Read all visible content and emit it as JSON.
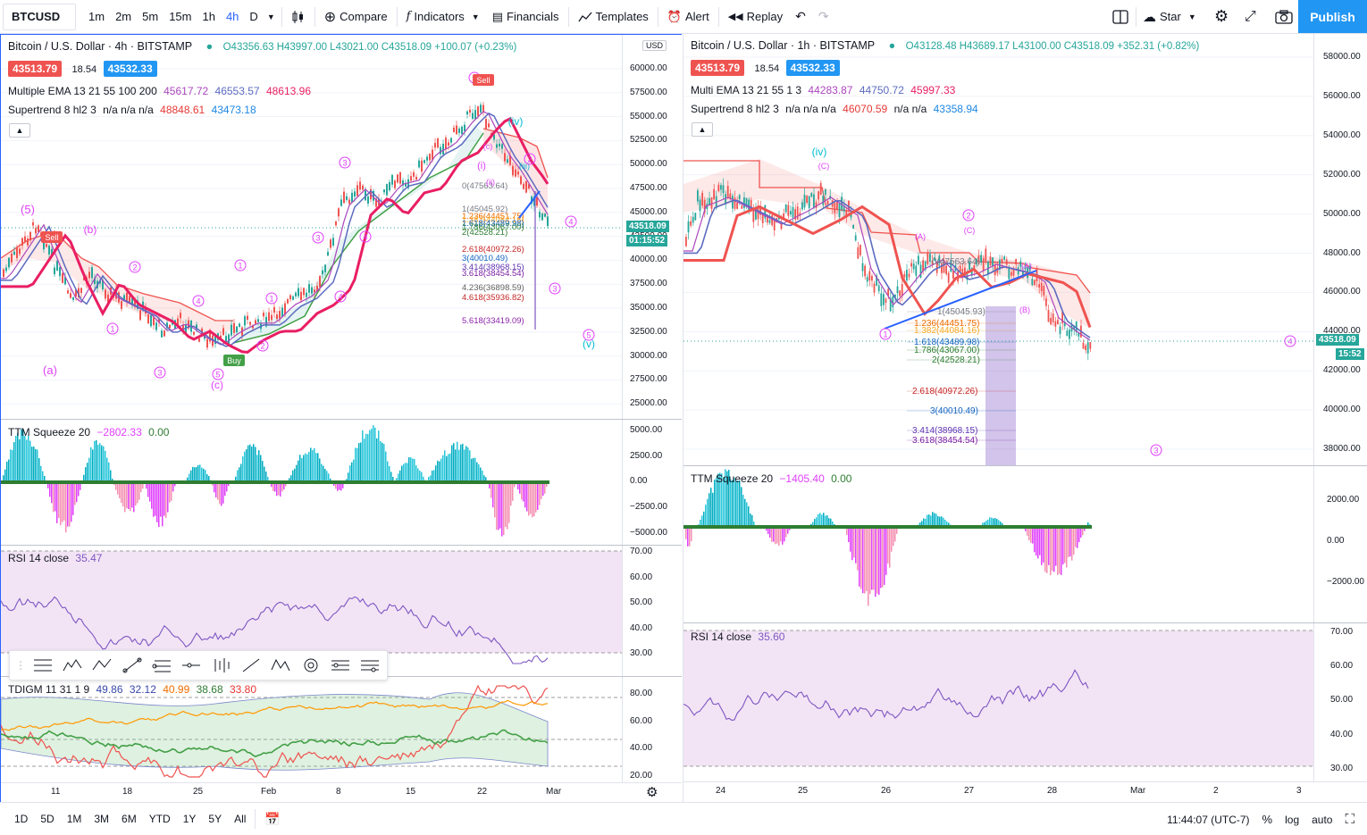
{
  "toolbar": {
    "symbol": "BTCUSD",
    "timeframes": [
      "1m",
      "2m",
      "5m",
      "15m",
      "1h",
      "4h",
      "D"
    ],
    "active_timeframe": "4h",
    "compare": "Compare",
    "indicators": "Indicators",
    "financials": "Financials",
    "templates": "Templates",
    "alert": "Alert",
    "replay": "Replay",
    "star": "Star",
    "publish": "Publish"
  },
  "left_chart": {
    "title": "Bitcoin / U.S. Dollar · 4h · BITSTAMP",
    "ohlc": "O43356.63 H43997.00 L43021.00 C43518.09 +100.07 (+0.23%)",
    "bid": "43513.79",
    "spread": "18.54",
    "ask": "43532.33",
    "currency": "USD",
    "ema_name": "Multiple EMA 13 21 55 100 200",
    "ema_vals": [
      "45617.72",
      "46553.57",
      "48613.96"
    ],
    "st_name": "Supertrend 8 hl2 3",
    "st_na": "n/a n/a n/a",
    "st_vals": [
      "48848.61",
      "43473.18"
    ],
    "last_price": "43518.09",
    "countdown": "01:15:52",
    "price_ticks": [
      "60000.00",
      "57500.00",
      "55000.00",
      "52500.00",
      "50000.00",
      "47500.00",
      "45000.00",
      "42500.00",
      "40000.00",
      "37500.00",
      "35000.00",
      "32500.00",
      "30000.00",
      "27500.00",
      "25000.00"
    ],
    "fib_labels": [
      "0(47563.64)",
      "1(45045.92)",
      "1.236(44451.75)",
      "1.382(44084.16)",
      "1.618(43489.98)",
      "1.786(43067.00)",
      "2(42528.21)",
      "2.618(40972.26)",
      "3(40010.49)",
      "3.414(38968.15)",
      "3.618(38454.54)",
      "4.236(36898.59)",
      "4.618(35936.82)",
      "5.618(33419.09)"
    ],
    "wave_labels": [
      "(5)",
      "(a)",
      "(b)",
      "(c)",
      "Sell",
      "Buy",
      "(iv)",
      "(v)",
      "(c)",
      "(i)",
      "(ii)",
      "(iii)"
    ],
    "ttm_name": "TTM Squeeze 20",
    "ttm_val1": "−2802.33",
    "ttm_val2": "0.00",
    "ttm_ticks": [
      "5000.00",
      "2500.00",
      "0.00",
      "−2500.00",
      "−5000.00"
    ],
    "rsi_name": "RSI 14 close",
    "rsi_val": "35.47",
    "rsi_ticks": [
      "70.00",
      "60.00",
      "50.00",
      "40.00",
      "30.00"
    ],
    "tdigm_name": "TDIGM 11 31 1 9",
    "tdigm_vals": [
      "49.86",
      "32.12",
      "40.99",
      "38.68",
      "33.80"
    ],
    "tdigm_ticks": [
      "80.00",
      "60.00",
      "40.00",
      "20.00"
    ],
    "time_labels": [
      "11",
      "18",
      "25",
      "Feb",
      "8",
      "15",
      "22",
      "Mar"
    ]
  },
  "right_chart": {
    "title": "Bitcoin / U.S. Dollar · 1h · BITSTAMP",
    "ohlc": "O43128.48 H43689.17 L43100.00 C43518.09 +352.31 (+0.82%)",
    "bid": "43513.79",
    "spread": "18.54",
    "ask": "43532.33",
    "ema_name": "Multi EMA 13 21 55 1 3",
    "ema_vals": [
      "44283.87",
      "44750.72",
      "45997.33"
    ],
    "st_name": "Supertrend 8 hl2 3",
    "st_na1": "n/a n/a n/a",
    "st_val1": "46070.59",
    "st_na2": "n/a n/a",
    "st_val2": "43358.94",
    "last_price": "43518.09",
    "countdown": "15:52",
    "price_ticks": [
      "58000.00",
      "56000.00",
      "54000.00",
      "52000.00",
      "50000.00",
      "48000.00",
      "46000.00",
      "44000.00",
      "42000.00",
      "40000.00",
      "38000.00"
    ],
    "fib_labels": [
      "0(47563.64)",
      "1(45045.93)",
      "1.236(44451.75)",
      "1.382(44084.16)",
      "1.618(43489.98)",
      "1.786(43067.00)",
      "2(42528.21)",
      "2.618(40972.26)",
      "3(40010.49)",
      "3.414(38968.15)",
      "3.618(38454.54)"
    ],
    "ttm_name": "TTM Squeeze 20",
    "ttm_val1": "−1405.40",
    "ttm_val2": "0.00",
    "ttm_ticks": [
      "2000.00",
      "0.00",
      "−2000.00"
    ],
    "rsi_name": "RSI 14 close",
    "rsi_val": "35.60",
    "rsi_ticks": [
      "70.00",
      "60.00",
      "50.00",
      "40.00",
      "30.00"
    ],
    "time_labels": [
      "24",
      "25",
      "26",
      "27",
      "28",
      "Mar",
      "2",
      "3"
    ]
  },
  "bottom_bar": {
    "ranges": [
      "1D",
      "5D",
      "1M",
      "3M",
      "6M",
      "YTD",
      "1Y",
      "5Y",
      "All"
    ],
    "clock": "11:44:07 (UTC-7)",
    "percent": "%",
    "log": "log",
    "auto": "auto"
  },
  "colors": {
    "accent": "#2962ff",
    "up": "#26a69a",
    "down": "#ef5350",
    "ema_red": "#e91e63",
    "ema_blue": "#5c6bc0",
    "wave": "#e040fb",
    "rsi_bg": "#f3e5f5"
  }
}
